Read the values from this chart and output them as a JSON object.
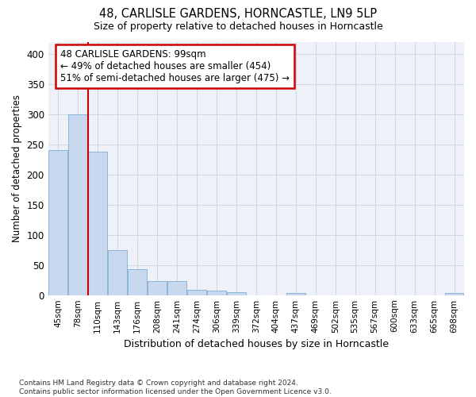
{
  "title_line1": "48, CARLISLE GARDENS, HORNCASTLE, LN9 5LP",
  "title_line2": "Size of property relative to detached houses in Horncastle",
  "xlabel": "Distribution of detached houses by size in Horncastle",
  "ylabel": "Number of detached properties",
  "footnote": "Contains HM Land Registry data © Crown copyright and database right 2024.\nContains public sector information licensed under the Open Government Licence v3.0.",
  "bin_labels": [
    "45sqm",
    "78sqm",
    "110sqm",
    "143sqm",
    "176sqm",
    "208sqm",
    "241sqm",
    "274sqm",
    "306sqm",
    "339sqm",
    "372sqm",
    "404sqm",
    "437sqm",
    "469sqm",
    "502sqm",
    "535sqm",
    "567sqm",
    "600sqm",
    "633sqm",
    "665sqm",
    "698sqm"
  ],
  "bar_values": [
    240,
    300,
    238,
    75,
    43,
    23,
    23,
    9,
    7,
    5,
    0,
    0,
    4,
    0,
    0,
    0,
    0,
    0,
    0,
    0,
    4
  ],
  "bar_color": "#c8d8ee",
  "bar_edge_color": "#8ab4d8",
  "bar_width": 0.95,
  "vline_x": 2.0,
  "annotation_text": "48 CARLISLE GARDENS: 99sqm\n← 49% of detached houses are smaller (454)\n51% of semi-detached houses are larger (475) →",
  "annotation_box_color": "white",
  "annotation_box_edge_color": "#cc0000",
  "vline_color": "#cc0000",
  "ylim": [
    0,
    420
  ],
  "yticks": [
    0,
    50,
    100,
    150,
    200,
    250,
    300,
    350,
    400
  ],
  "grid_color": "#d0d8e8",
  "bg_color": "#ffffff",
  "plot_bg_color": "#eef2f8"
}
